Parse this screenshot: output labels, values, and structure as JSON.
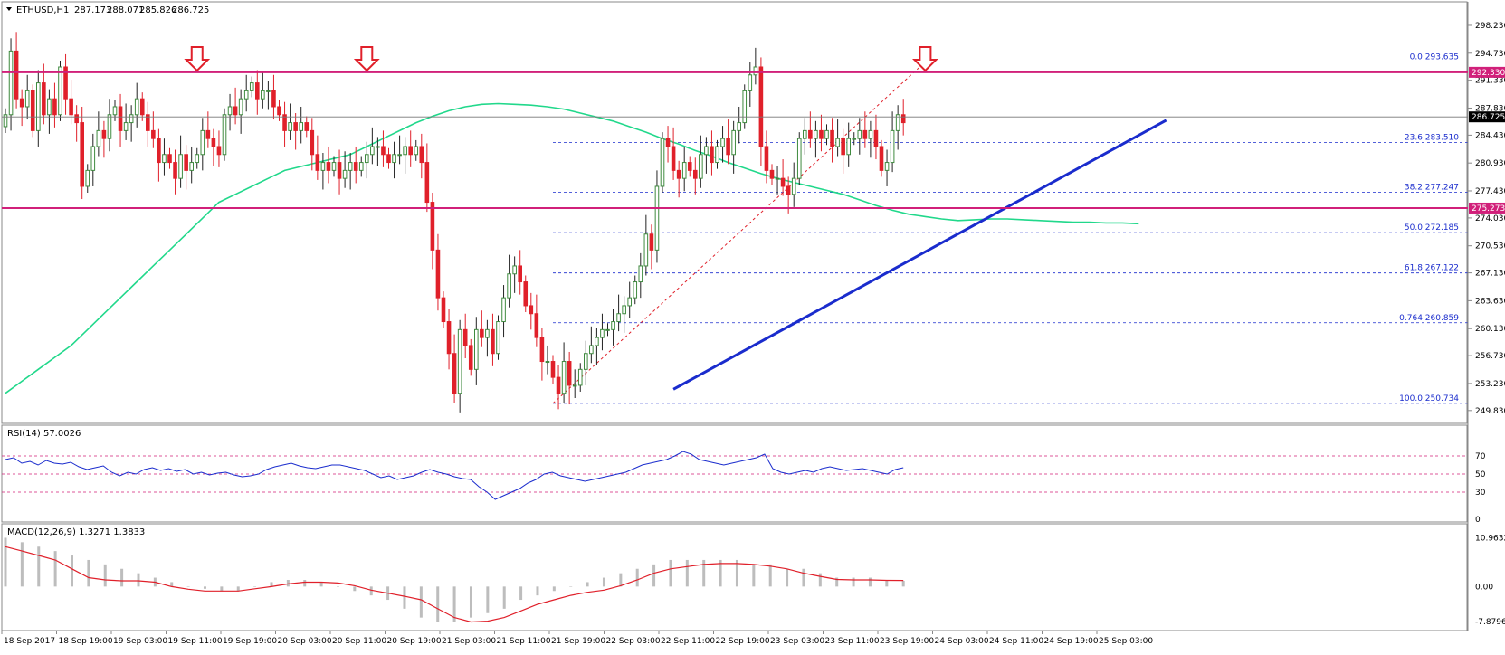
{
  "chart_data": {
    "type": "candlestick",
    "symbol": "ETHUSD,H1",
    "ohlc_header": {
      "open": "287.173",
      "high": "288.071",
      "low": "285.826",
      "close": "286.725"
    },
    "colors": {
      "bull": "#3f8a3f",
      "bear": "#e0202a",
      "ma": "#21d88b",
      "hline": "#d1207a",
      "trend": "#1a2ccd",
      "fib": "#1a2ccd",
      "arrow": "#e0202a",
      "rsi": "#1a2ccd",
      "macd_signal": "#e0202a",
      "macd_hist": "#bdbdbd"
    },
    "price_axis": {
      "ylim": [
        248.9,
        300.5
      ],
      "ticks": [
        "298.230",
        "294.730",
        "291.330",
        "287.830",
        "284.430",
        "280.930",
        "277.430",
        "274.030",
        "270.530",
        "267.130",
        "263.630",
        "260.130",
        "256.730",
        "253.230",
        "249.830"
      ]
    },
    "current_price": "286.725",
    "horizontal_lines": [
      {
        "value": 292.33,
        "label": "292.330"
      },
      {
        "value": 275.273,
        "label": "275.273"
      }
    ],
    "fibonacci": [
      {
        "label": "0.0  293.635",
        "value": 293.635
      },
      {
        "label": "23.6  283.510",
        "value": 283.51
      },
      {
        "label": "38.2  277.247",
        "value": 277.247
      },
      {
        "label": "50.0  272.185",
        "value": 272.185
      },
      {
        "label": "61.8  267.122",
        "value": 267.122
      },
      {
        "label": "0.764  260.859",
        "value": 260.859
      },
      {
        "label": "100.0  250.734",
        "value": 250.734
      }
    ],
    "fib_start_index": 100,
    "trendline": [
      {
        "i": 122,
        "p": 252.5
      },
      {
        "i": 212,
        "p": 286.3
      }
    ],
    "fib_diagonal": [
      {
        "i": 100,
        "p": 250.734
      },
      {
        "i": 168,
        "p": 293.635
      }
    ],
    "arrows_at_index": [
      35,
      66,
      168
    ],
    "x_labels": [
      {
        "i": 0,
        "label": "18 Sep 2017"
      },
      {
        "i": 10,
        "label": "18 Sep 19:00"
      },
      {
        "i": 20,
        "label": "19 Sep 03:00"
      },
      {
        "i": 30,
        "label": "19 Sep 11:00"
      },
      {
        "i": 40,
        "label": "19 Sep 19:00"
      },
      {
        "i": 50,
        "label": "20 Sep 03:00"
      },
      {
        "i": 60,
        "label": "20 Sep 11:00"
      },
      {
        "i": 70,
        "label": "20 Sep 19:00"
      },
      {
        "i": 80,
        "label": "21 Sep 03:00"
      },
      {
        "i": 90,
        "label": "21 Sep 11:00"
      },
      {
        "i": 100,
        "label": "21 Sep 19:00"
      },
      {
        "i": 110,
        "label": "22 Sep 03:00"
      },
      {
        "i": 120,
        "label": "22 Sep 11:00"
      },
      {
        "i": 130,
        "label": "22 Sep 19:00"
      },
      {
        "i": 140,
        "label": "23 Sep 03:00"
      },
      {
        "i": 150,
        "label": "23 Sep 11:00"
      },
      {
        "i": 160,
        "label": "23 Sep 19:00"
      },
      {
        "i": 170,
        "label": "24 Sep 03:00"
      },
      {
        "i": 180,
        "label": "24 Sep 11:00"
      },
      {
        "i": 190,
        "label": "24 Sep 19:00"
      },
      {
        "i": 200,
        "label": "25 Sep 03:00"
      }
    ],
    "closes": [
      287,
      295,
      289,
      288,
      290,
      285,
      291,
      287,
      289,
      287,
      293,
      289,
      287,
      286,
      278,
      280,
      283,
      285,
      284,
      287,
      288,
      285,
      286,
      287,
      289,
      287,
      285,
      284,
      281,
      282,
      281,
      279,
      282,
      280,
      281,
      282,
      285,
      284,
      283,
      282,
      287,
      288,
      287,
      289,
      290,
      291,
      289,
      290,
      290,
      288,
      287,
      285,
      286,
      285,
      286,
      285,
      282,
      280,
      281,
      280,
      281,
      279,
      280,
      281,
      280,
      281,
      282,
      283,
      283,
      282,
      281,
      282,
      282,
      283,
      282,
      283,
      281,
      276,
      270,
      264,
      261,
      257,
      252,
      260,
      258,
      255,
      260,
      259,
      260,
      257,
      261,
      264,
      267,
      268,
      266,
      263,
      262,
      259,
      256,
      256,
      254,
      252,
      256,
      253,
      253,
      255,
      257,
      258,
      259,
      260,
      260,
      261,
      262,
      263,
      264,
      266,
      268,
      272,
      270,
      278,
      284,
      283,
      280,
      279,
      281,
      280,
      279,
      282,
      283,
      281,
      283,
      284,
      282,
      285,
      286,
      290,
      292,
      293,
      283,
      280,
      279,
      279,
      278,
      277,
      279,
      284,
      285,
      284,
      285,
      284,
      285,
      283,
      284,
      282,
      284,
      284,
      285,
      284,
      285,
      283,
      280,
      281,
      285,
      287,
      286
    ],
    "ma": [
      252,
      253.5,
      255,
      256.5,
      258,
      260,
      262,
      264,
      266,
      268,
      270,
      272,
      274,
      276,
      277,
      278,
      279,
      280,
      280.5,
      281,
      281.5,
      282,
      283,
      284,
      285,
      286,
      286.8,
      287.5,
      288,
      288.3,
      288.4,
      288.3,
      288.2,
      288,
      287.7,
      287.2,
      286.7,
      286.2,
      285.5,
      284.8,
      284,
      283.3,
      282.5,
      281.8,
      281,
      280.3,
      279.6,
      279,
      278.5,
      278,
      277.5,
      277,
      276.3,
      275.6,
      275,
      274.5,
      274.2,
      273.9,
      273.7,
      273.8,
      273.9,
      273.9,
      273.8,
      273.7,
      273.6,
      273.5,
      273.5,
      273.4,
      273.4,
      273.3
    ],
    "ma_start": 0,
    "ma_step": 3,
    "rsi": {
      "label": "RSI(14) 57.0026",
      "ticks": [
        "70",
        "50",
        "30",
        "0"
      ],
      "levels": [
        70,
        50,
        30
      ],
      "values": [
        66,
        68,
        62,
        64,
        60,
        65,
        62,
        61,
        63,
        58,
        55,
        57,
        59,
        52,
        48,
        52,
        50,
        55,
        57,
        54,
        56,
        53,
        55,
        50,
        52,
        49,
        51,
        52,
        49,
        47,
        48,
        50,
        55,
        58,
        60,
        62,
        59,
        57,
        56,
        58,
        60,
        60,
        58,
        56,
        54,
        50,
        46,
        48,
        44,
        46,
        48,
        52,
        55,
        52,
        50,
        47,
        45,
        44,
        36,
        30,
        22,
        26,
        30,
        34,
        40,
        44,
        50,
        52,
        48,
        46,
        44,
        42,
        44,
        46,
        48,
        50,
        52,
        56,
        60,
        62,
        64,
        66,
        70,
        75,
        72,
        66,
        64,
        62,
        60,
        62,
        64,
        66,
        68,
        72,
        56,
        52,
        50,
        52,
        54,
        52,
        56,
        58,
        56,
        54,
        55,
        56,
        54,
        52,
        50,
        55,
        57
      ]
    },
    "macd": {
      "label": "MACD(12,26,9) 1.3271 1.3833",
      "ticks": [
        "10.9632",
        "0.00",
        "-7.8796"
      ],
      "ylim": [
        -8.5,
        11.5
      ],
      "hist": [
        11,
        10,
        9,
        8,
        7,
        6,
        5,
        4,
        3,
        2,
        1,
        0,
        -0.5,
        -1,
        -1,
        0,
        1,
        1.5,
        1.5,
        1,
        0,
        -1,
        -2,
        -3,
        -5,
        -7,
        -8,
        -8,
        -7,
        -6,
        -5,
        -3,
        -2,
        -1,
        0,
        1,
        2,
        3,
        4,
        5,
        6,
        6,
        6,
        6,
        6,
        5,
        5,
        4,
        4,
        3,
        2,
        2,
        2,
        1.5,
        1.3
      ],
      "signal": [
        9,
        8,
        7,
        6,
        4,
        2,
        1.5,
        1.3,
        1.3,
        1,
        0,
        -0.6,
        -1,
        -1,
        -1,
        -0.5,
        0,
        0.6,
        1,
        1,
        0.8,
        0.2,
        -0.8,
        -1.5,
        -2.2,
        -3,
        -5,
        -7,
        -8,
        -7.8,
        -7,
        -5.5,
        -4,
        -3,
        -2,
        -1.3,
        -0.8,
        0.2,
        1.5,
        3,
        4,
        4.5,
        5,
        5.2,
        5.2,
        5,
        4.6,
        4,
        3,
        2.3,
        1.6,
        1.5,
        1.5,
        1.4,
        1.38
      ]
    }
  }
}
